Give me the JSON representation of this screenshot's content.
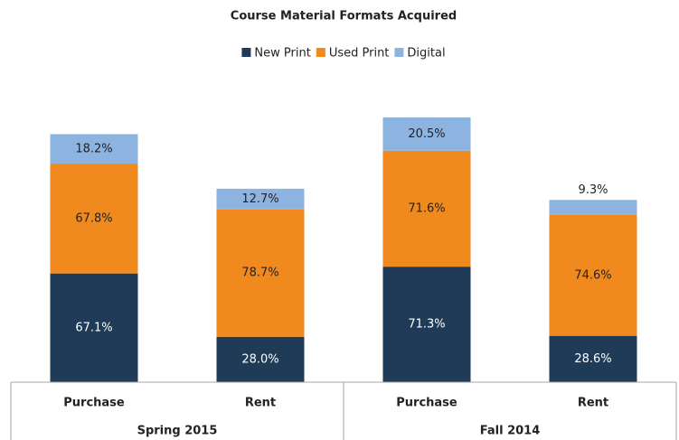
{
  "chart_data": {
    "type": "stacked_bar",
    "title": "Course Material Formats Acquired",
    "categories": [
      "Purchase",
      "Rent",
      "Purchase",
      "Rent"
    ],
    "groups": [
      "Spring 2015",
      "Fall 2014"
    ],
    "series": [
      {
        "name": "New Print",
        "color": "#1f3b57",
        "label_color": "#ffffff",
        "values": [
          67.1,
          28.0,
          71.3,
          28.6
        ],
        "value_labels": [
          "67.1%",
          "28.0%",
          "71.3%",
          "28.6%"
        ]
      },
      {
        "name": "Used Print",
        "color": "#f0891e",
        "label_color": "#222222",
        "values": [
          67.8,
          78.7,
          71.6,
          74.6
        ],
        "value_labels": [
          "67.8%",
          "78.7%",
          "71.6%",
          "74.6%"
        ]
      },
      {
        "name": "Digital",
        "color": "#8db4e0",
        "label_color": "#222222",
        "values": [
          18.2,
          12.7,
          20.5,
          9.3
        ],
        "value_labels": [
          "18.2%",
          "12.7%",
          "20.5%",
          "9.3%"
        ]
      }
    ]
  }
}
